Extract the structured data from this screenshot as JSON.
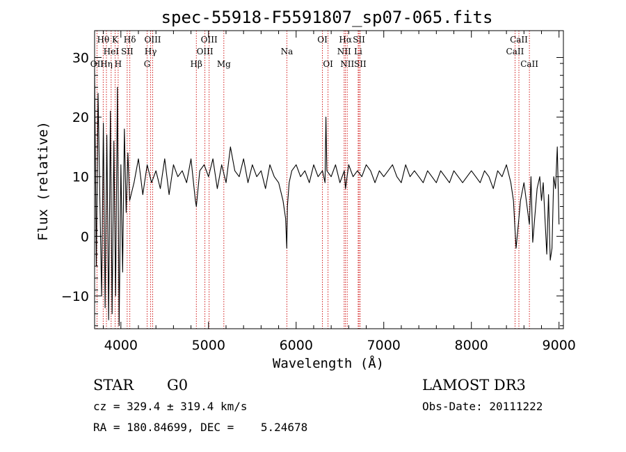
{
  "chart_data": {
    "type": "line",
    "title": "spec-55918-F5591807_sp07-065.fits",
    "xlabel": "Wavelength (Å)",
    "ylabel": "Flux (relative)",
    "xlim": [
      3700,
      9050
    ],
    "ylim": [
      -15.5,
      34.5
    ],
    "xticks": [
      4000,
      5000,
      6000,
      7000,
      8000,
      9000
    ],
    "yticks": [
      -10,
      0,
      10,
      20,
      30
    ],
    "line_color": "#cc0000",
    "series": [
      {
        "name": "flux",
        "x": [
          3700,
          3720,
          3740,
          3760,
          3780,
          3800,
          3820,
          3840,
          3860,
          3880,
          3900,
          3920,
          3940,
          3960,
          3980,
          4000,
          4020,
          4040,
          4060,
          4080,
          4100,
          4150,
          4200,
          4250,
          4300,
          4350,
          4400,
          4450,
          4500,
          4550,
          4600,
          4650,
          4700,
          4750,
          4800,
          4850,
          4861,
          4900,
          4950,
          5000,
          5050,
          5100,
          5150,
          5200,
          5250,
          5300,
          5350,
          5400,
          5450,
          5500,
          5550,
          5600,
          5650,
          5700,
          5750,
          5800,
          5850,
          5880,
          5893,
          5900,
          5920,
          5950,
          6000,
          6050,
          6100,
          6150,
          6200,
          6250,
          6300,
          6330,
          6340,
          6350,
          6400,
          6450,
          6500,
          6550,
          6563,
          6600,
          6650,
          6700,
          6750,
          6800,
          6850,
          6900,
          6950,
          7000,
          7050,
          7100,
          7150,
          7200,
          7250,
          7300,
          7350,
          7400,
          7450,
          7500,
          7550,
          7600,
          7650,
          7700,
          7750,
          7800,
          7850,
          7900,
          7950,
          8000,
          8050,
          8100,
          8150,
          8200,
          8250,
          8300,
          8350,
          8400,
          8450,
          8480,
          8498,
          8510,
          8542,
          8560,
          8600,
          8662,
          8680,
          8700,
          8750,
          8780,
          8800,
          8820,
          8840,
          8860,
          8880,
          8900,
          8920,
          8940,
          8960,
          8980,
          9000
        ],
        "y": [
          28,
          -5,
          24,
          6,
          -10,
          19,
          -12,
          17,
          -14,
          21,
          -13,
          16,
          -10,
          25,
          -15,
          12,
          -6,
          18,
          4,
          14,
          6,
          9,
          13,
          7,
          12,
          9,
          11,
          8,
          13,
          7,
          12,
          10,
          11,
          9,
          13,
          6,
          5,
          11,
          12,
          10,
          13,
          8,
          12,
          9,
          15,
          11,
          10,
          13,
          9,
          12,
          10,
          11,
          8,
          12,
          10,
          9,
          6,
          3,
          -2,
          5,
          9,
          11,
          12,
          10,
          11,
          9,
          12,
          10,
          11,
          9,
          20,
          11,
          10,
          12,
          9,
          11,
          8,
          12,
          10,
          11,
          10,
          12,
          11,
          9,
          11,
          10,
          11,
          12,
          10,
          9,
          12,
          10,
          11,
          10,
          9,
          11,
          10,
          9,
          11,
          10,
          9,
          11,
          10,
          9,
          10,
          11,
          10,
          9,
          11,
          10,
          8,
          11,
          10,
          12,
          9,
          6,
          1,
          -2,
          3,
          6,
          9,
          2,
          10,
          -1,
          8,
          10,
          6,
          9,
          3,
          -3,
          7,
          -4,
          -2,
          10,
          8,
          15,
          2
        ]
      }
    ],
    "emission_lines": [
      {
        "label": "OII",
        "wl": 3727,
        "row": 3
      },
      {
        "label": "Hθ",
        "wl": 3798,
        "row": 1
      },
      {
        "label": "Hη",
        "wl": 3835,
        "row": 3
      },
      {
        "label": "HeI",
        "wl": 3889,
        "row": 2
      },
      {
        "label": "K",
        "wl": 3934,
        "row": 1
      },
      {
        "label": "H",
        "wl": 3969,
        "row": 3
      },
      {
        "label": "SII",
        "wl": 4072,
        "row": 2
      },
      {
        "label": "Hδ",
        "wl": 4102,
        "row": 1
      },
      {
        "label": "G",
        "wl": 4300,
        "row": 3
      },
      {
        "label": "Hγ",
        "wl": 4340,
        "row": 2
      },
      {
        "label": "OIII",
        "wl": 4363,
        "row": 1
      },
      {
        "label": "Hβ",
        "wl": 4861,
        "row": 3
      },
      {
        "label": "OIII",
        "wl": 4959,
        "row": 2
      },
      {
        "label": "OIII",
        "wl": 5007,
        "row": 1
      },
      {
        "label": "Mg",
        "wl": 5175,
        "row": 3
      },
      {
        "label": "Na",
        "wl": 5894,
        "row": 2
      },
      {
        "label": "OI",
        "wl": 6300,
        "row": 1
      },
      {
        "label": "OI",
        "wl": 6364,
        "row": 3
      },
      {
        "label": "NII",
        "wl": 6548,
        "row": 2
      },
      {
        "label": "Hα",
        "wl": 6563,
        "row": 1
      },
      {
        "label": "NII",
        "wl": 6583,
        "row": 3
      },
      {
        "label": "SII",
        "wl": 6717,
        "row": 1
      },
      {
        "label": "Li",
        "wl": 6708,
        "row": 2
      },
      {
        "label": "SII",
        "wl": 6731,
        "row": 3
      },
      {
        "label": "CaII",
        "wl": 8498,
        "row": 2
      },
      {
        "label": "CaII",
        "wl": 8542,
        "row": 1
      },
      {
        "label": "CaII",
        "wl": 8662,
        "row": 3
      }
    ]
  },
  "info": {
    "class": "STAR",
    "subclass": "G0",
    "survey": "LAMOST DR3",
    "cz": "cz = 329.4 ± 319.4 km/s",
    "obsdate": "Obs-Date: 20111222",
    "radec": "RA = 180.84699, DEC =    5.24678"
  }
}
